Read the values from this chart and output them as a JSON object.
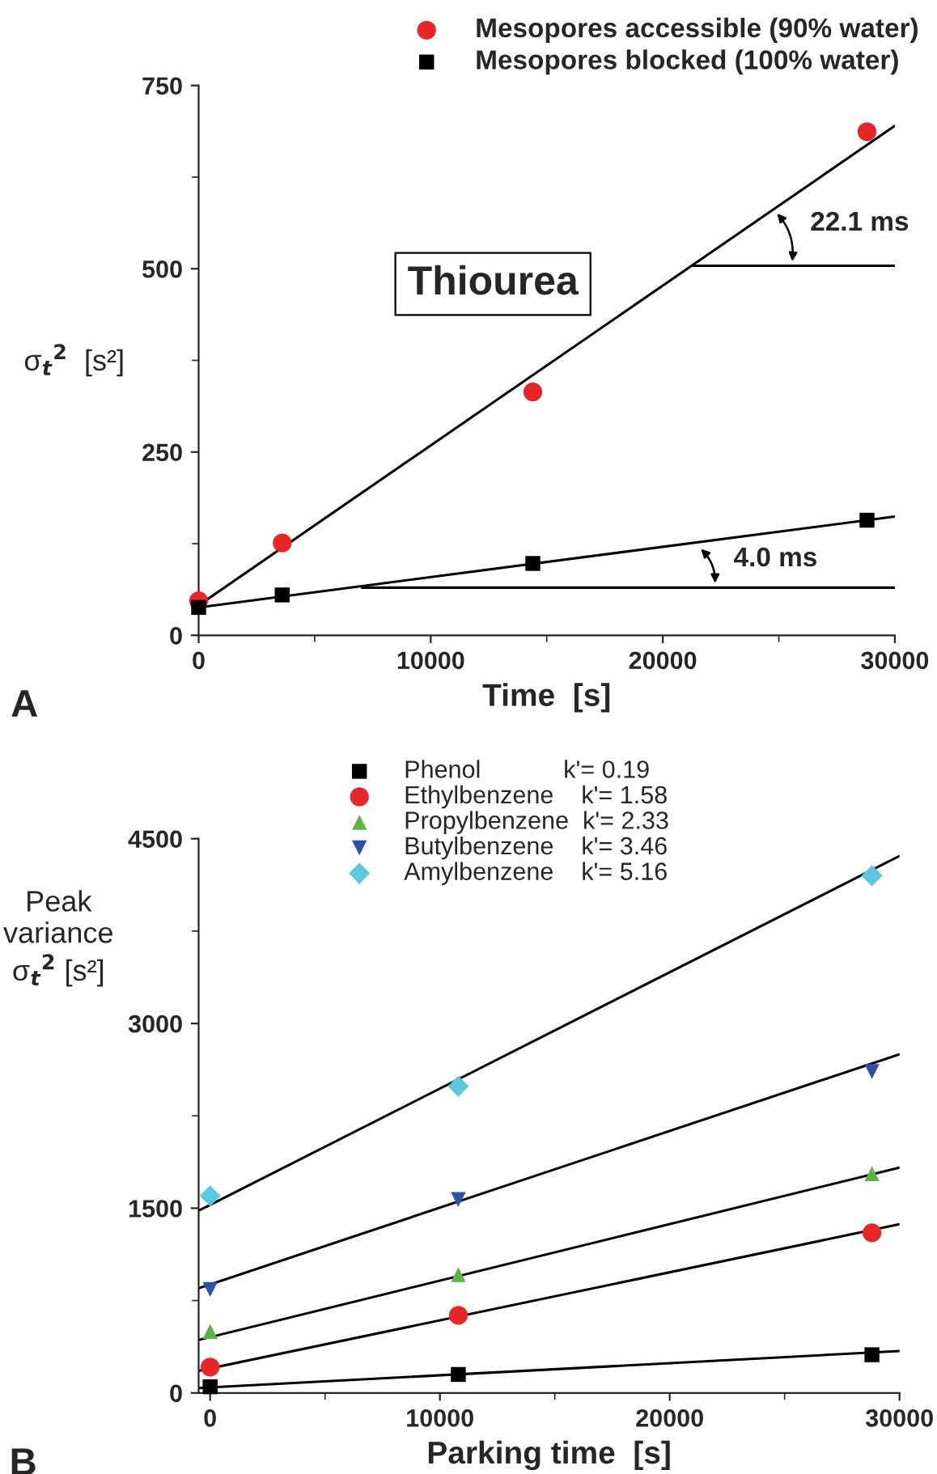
{
  "chart_data": [
    {
      "type": "scatter",
      "xlabel": "Time  [s]",
      "ylabel": "σ$_{t}$$^{2}$  [s²]",
      "xlim": [
        0,
        30000
      ],
      "xticks": [
        0,
        10000,
        20000,
        30000
      ],
      "ylim": [
        0,
        750
      ],
      "yticks": [
        0,
        250,
        500,
        750
      ],
      "legend": "top",
      "grid": false,
      "annotations": [
        "Thiourea",
        {
          "text": "22.1 ms",
          "x": 24800,
          "y": 580
        },
        {
          "text": "4.0 ms",
          "x": 21500,
          "y": 122
        },
        "A"
      ],
      "series": [
        {
          "name": "Mesopores accessible (90% water)",
          "marker": "circle",
          "color": "#e8262a",
          "x": [
            0,
            3600,
            14400,
            28800
          ],
          "values": [
            47,
            126,
            332,
            687
          ]
        },
        {
          "name": "Mesopores blocked (100% water)",
          "marker": "square",
          "color": "#000000",
          "x": [
            0,
            3600,
            14400,
            28800
          ],
          "values": [
            38,
            55,
            98,
            157
          ]
        },
        {
          "type": "line",
          "color": "#000000",
          "x": [
            0,
            30000
          ],
          "values": [
            41,
            695
          ]
        },
        {
          "type": "line",
          "color": "#000000",
          "x": [
            0,
            30000
          ],
          "values": [
            38,
            162
          ]
        },
        {
          "type": "line",
          "color": "#000000",
          "x": [
            21330,
            30000
          ],
          "values": [
            504,
            504
          ]
        },
        {
          "type": "line",
          "color": "#000000",
          "x": [
            7040,
            30000
          ],
          "values": [
            65,
            65
          ]
        }
      ]
    },
    {
      "type": "scatter",
      "xlabel": "Parking time  [s]",
      "ylabel": "Peak\nvariance\nσ$_{t}$$^{2}$ [s²]",
      "xlim": [
        -500,
        30000
      ],
      "xticks": [
        0,
        10000,
        20000,
        30000
      ],
      "ylim": [
        0,
        4500
      ],
      "yticks": [
        0,
        1500,
        3000,
        4500
      ],
      "legend": "top left",
      "grid": false,
      "annotations": [
        "B"
      ],
      "series": [
        {
          "name": "Phenol            k'= 0.19",
          "marker": "square",
          "color": "#000000",
          "x": [
            0,
            10800,
            28800
          ],
          "values": [
            50,
            150,
            310
          ]
        },
        {
          "name": "Ethylbenzene    k'= 1.58",
          "marker": "circle",
          "color": "#e8262a",
          "x": [
            0,
            10800,
            28800
          ],
          "values": [
            210,
            630,
            1300
          ]
        },
        {
          "name": "Propylbenzene  k'= 2.33",
          "marker": "triangle",
          "color": "#5cb346",
          "x": [
            0,
            10800,
            28800
          ],
          "values": [
            500,
            960,
            1780
          ]
        },
        {
          "name": "Butylbenzene    k'= 3.46",
          "marker": "triangle_down",
          "color": "#2f4fa8",
          "x": [
            0,
            10800,
            28800
          ],
          "values": [
            840,
            1570,
            2610
          ]
        },
        {
          "name": "Amylbenzene    k'= 5.16",
          "marker": "diamond",
          "color": "#5cc8dc",
          "x": [
            0,
            10800,
            28800
          ],
          "values": [
            1600,
            2490,
            4200
          ]
        },
        {
          "type": "line",
          "color": "#000000",
          "x": [
            -500,
            30000
          ],
          "values": [
            40,
            340
          ]
        },
        {
          "type": "line",
          "color": "#000000",
          "x": [
            -500,
            30000
          ],
          "values": [
            180,
            1370
          ]
        },
        {
          "type": "line",
          "color": "#000000",
          "x": [
            -500,
            30000
          ],
          "values": [
            430,
            1830
          ]
        },
        {
          "type": "line",
          "color": "#000000",
          "x": [
            -500,
            30000
          ],
          "values": [
            850,
            2750
          ]
        },
        {
          "type": "line",
          "color": "#000000",
          "x": [
            -500,
            30000
          ],
          "values": [
            1480,
            4360
          ]
        }
      ]
    }
  ]
}
